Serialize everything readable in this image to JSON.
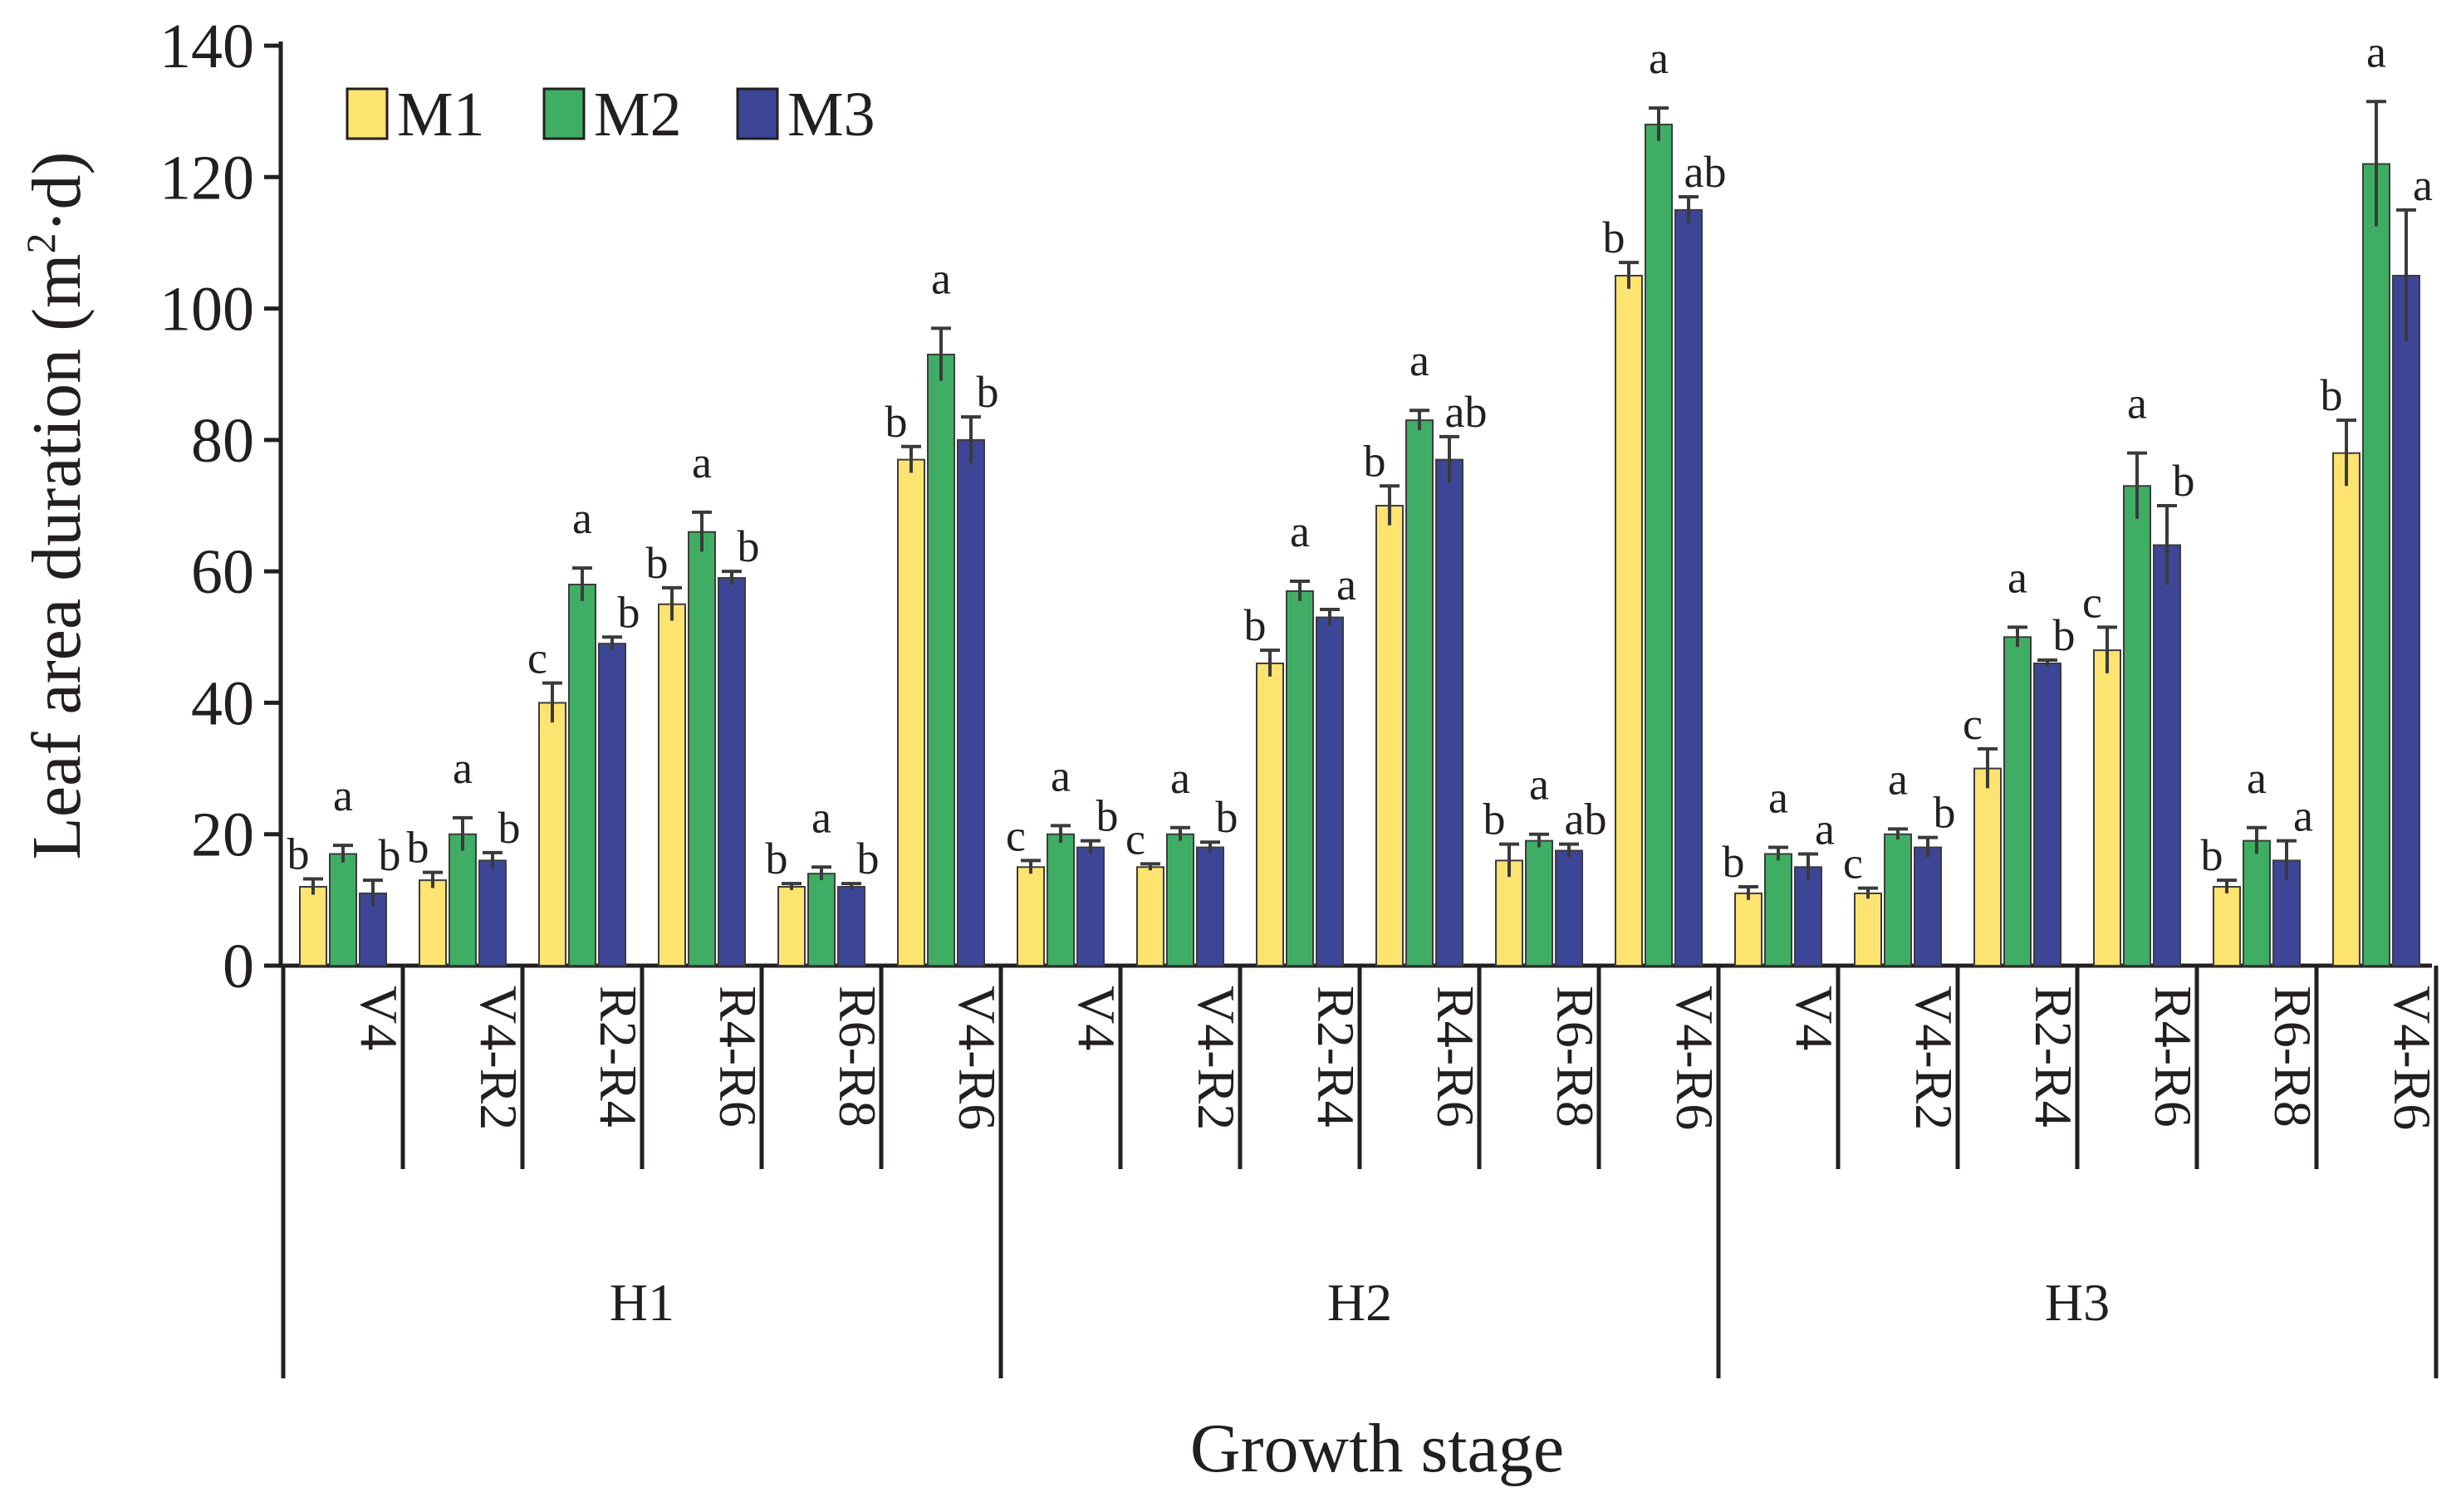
{
  "chart_data": {
    "type": "bar",
    "title": "",
    "xlabel": "Growth stage",
    "ylabel": "Leaf area duration (m²·d)",
    "ylabel_parts": {
      "before": "Leaf area duration (m",
      "sup": "2",
      "after": "·d)"
    },
    "ylim": [
      0,
      140
    ],
    "yticks": [
      0,
      20,
      40,
      60,
      80,
      100,
      120,
      140
    ],
    "ytick_labels": [
      "0",
      "20",
      "40",
      "60",
      "80",
      "100",
      "120",
      "140"
    ],
    "legend": {
      "position": "top-left",
      "entries": [
        "M1",
        "M2",
        "M3"
      ]
    },
    "colors": {
      "M1": "#fde36f",
      "M2": "#3fae64",
      "M3": "#3d4596",
      "error": "#3a3a3a",
      "axis": "#231f20"
    },
    "groups": [
      {
        "name": "H1",
        "stages": [
          {
            "label": "V4",
            "values": [
              12,
              17,
              11
            ],
            "errors": [
              1.2,
              1.3,
              2.0
            ],
            "letters": [
              "b",
              "a",
              "b"
            ]
          },
          {
            "label": "V4-R2",
            "values": [
              13,
              20,
              16
            ],
            "errors": [
              1.2,
              2.5,
              1.2
            ],
            "letters": [
              "b",
              "a",
              "b"
            ]
          },
          {
            "label": "R2-R4",
            "values": [
              40,
              58,
              49
            ],
            "errors": [
              3.0,
              2.5,
              1.0
            ],
            "letters": [
              "c",
              "a",
              "b"
            ]
          },
          {
            "label": "R4-R6",
            "values": [
              55,
              66,
              59
            ],
            "errors": [
              2.5,
              3.0,
              1.0
            ],
            "letters": [
              "b",
              "a",
              "b"
            ]
          },
          {
            "label": "R6-R8",
            "values": [
              12,
              14,
              12
            ],
            "errors": [
              0.5,
              1.0,
              0.5
            ],
            "letters": [
              "b",
              "a",
              "b"
            ]
          },
          {
            "label": "V4-R6",
            "values": [
              77,
              93,
              80
            ],
            "errors": [
              2.0,
              4.0,
              3.5
            ],
            "letters": [
              "b",
              "a",
              "b"
            ]
          }
        ]
      },
      {
        "name": "H2",
        "stages": [
          {
            "label": "V4",
            "values": [
              15,
              20,
              18
            ],
            "errors": [
              1.0,
              1.3,
              1.0
            ],
            "letters": [
              "c",
              "a",
              "b"
            ]
          },
          {
            "label": "V4-R2",
            "values": [
              15,
              20,
              18
            ],
            "errors": [
              0.5,
              1.0,
              0.8
            ],
            "letters": [
              "c",
              "a",
              "b"
            ]
          },
          {
            "label": "R2-R4",
            "values": [
              46,
              57,
              53
            ],
            "errors": [
              2.0,
              1.5,
              1.2
            ],
            "letters": [
              "b",
              "a",
              "a"
            ]
          },
          {
            "label": "R4-R6",
            "values": [
              70,
              83,
              77
            ],
            "errors": [
              3.0,
              1.5,
              3.5
            ],
            "letters": [
              "b",
              "a",
              "ab"
            ]
          },
          {
            "label": "R6-R8",
            "values": [
              16,
              19,
              17.5
            ],
            "errors": [
              2.5,
              1.0,
              1.0
            ],
            "letters": [
              "b",
              "a",
              "ab"
            ]
          },
          {
            "label": "V4-R6",
            "values": [
              105,
              128,
              115
            ],
            "errors": [
              2.0,
              2.5,
              2.0
            ],
            "letters": [
              "b",
              "a",
              "ab"
            ]
          }
        ]
      },
      {
        "name": "H3",
        "stages": [
          {
            "label": "V4",
            "values": [
              11,
              17,
              15
            ],
            "errors": [
              1.0,
              1.0,
              2.0
            ],
            "letters": [
              "b",
              "a",
              "a"
            ]
          },
          {
            "label": "V4-R2",
            "values": [
              11,
              20,
              18
            ],
            "errors": [
              0.8,
              0.8,
              1.5
            ],
            "letters": [
              "c",
              "a",
              "b"
            ]
          },
          {
            "label": "R2-R4",
            "values": [
              30,
              50,
              46
            ],
            "errors": [
              3.0,
              1.5,
              0.5
            ],
            "letters": [
              "c",
              "a",
              "b"
            ]
          },
          {
            "label": "R4-R6",
            "values": [
              48,
              73,
              64
            ],
            "errors": [
              3.5,
              5.0,
              6.0
            ],
            "letters": [
              "c",
              "a",
              "b"
            ]
          },
          {
            "label": "R6-R8",
            "values": [
              12,
              19,
              16
            ],
            "errors": [
              1.0,
              2.0,
              3.0
            ],
            "letters": [
              "b",
              "a",
              "a"
            ]
          },
          {
            "label": "V4-R6",
            "values": [
              78,
              122,
              105
            ],
            "errors": [
              5.0,
              9.5,
              10.0
            ],
            "letters": [
              "b",
              "a",
              "a"
            ]
          }
        ]
      }
    ]
  }
}
